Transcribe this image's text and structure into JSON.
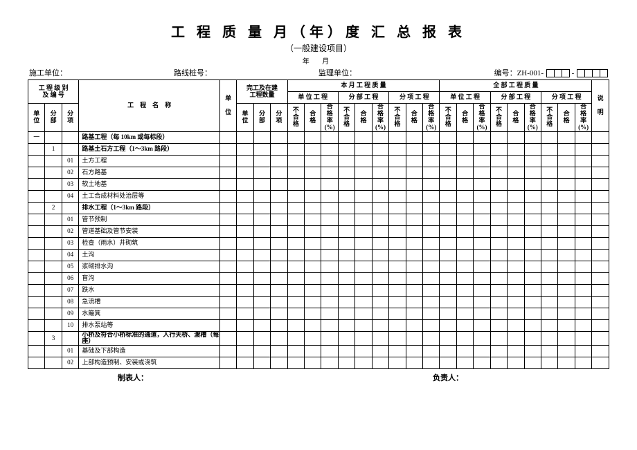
{
  "title": "工 程 质 量 月（年）度 汇 总 报 表",
  "subtitle": "（一般建设项目）",
  "date_label": "年    月",
  "meta": {
    "org": "施工单位：",
    "route": "路线桩号：",
    "supervisor": "监理单位：",
    "code_label": "编号：ZH-001-"
  },
  "head": {
    "grade_no": "工 程 级 别\n及 编 号",
    "name": "工　程　名　称",
    "unit": "单\n\n位",
    "build_qty": "完工及在建\n工程数量",
    "month_q": "本 月 工 程 质 量",
    "all_q": "全 部 工 程 质 量",
    "remark": "说\n\n明",
    "u": "单\n位",
    "s": "分\n部",
    "i": "分\n项",
    "uw": "单 位 工 程",
    "sw": "分 部 工 程",
    "iw": "分 项 工 程",
    "nq": "不\n合\n格",
    "q": "合\n格",
    "qr": "合\n格\n率\n(%)"
  },
  "rows": [
    {
      "a": "一",
      "b": "",
      "c": "",
      "name": "路基工程（每 10km 或每标段）",
      "bold": true
    },
    {
      "a": "",
      "b": "1",
      "c": "",
      "name": "路基土石方工程（1～3km 路段）",
      "bold": true
    },
    {
      "a": "",
      "b": "",
      "c": "01",
      "name": "土方工程"
    },
    {
      "a": "",
      "b": "",
      "c": "02",
      "name": "石方路基"
    },
    {
      "a": "",
      "b": "",
      "c": "03",
      "name": "软土地基"
    },
    {
      "a": "",
      "b": "",
      "c": "04",
      "name": "土工合成材料处治层等"
    },
    {
      "a": "",
      "b": "2",
      "c": "",
      "name": "排水工程（1～3km 路段）",
      "bold": true
    },
    {
      "a": "",
      "b": "",
      "c": "01",
      "name": "管节预制"
    },
    {
      "a": "",
      "b": "",
      "c": "02",
      "name": "管道基础及管节安装"
    },
    {
      "a": "",
      "b": "",
      "c": "03",
      "name": "检查（雨水）井砌筑"
    },
    {
      "a": "",
      "b": "",
      "c": "04",
      "name": "土沟"
    },
    {
      "a": "",
      "b": "",
      "c": "05",
      "name": "浆砌排水沟"
    },
    {
      "a": "",
      "b": "",
      "c": "06",
      "name": "盲沟"
    },
    {
      "a": "",
      "b": "",
      "c": "07",
      "name": "跌水"
    },
    {
      "a": "",
      "b": "",
      "c": "08",
      "name": "急流槽"
    },
    {
      "a": "",
      "b": "",
      "c": "09",
      "name": "水簸箕"
    },
    {
      "a": "",
      "b": "",
      "c": "10",
      "name": "排水泵站等"
    },
    {
      "a": "",
      "b": "3",
      "c": "",
      "name": "小桥及符合小桥标准的通道，人行天桥、渡槽（每座）",
      "bold": true
    },
    {
      "a": "",
      "b": "",
      "c": "01",
      "name": "基础及下部构造"
    },
    {
      "a": "",
      "b": "",
      "c": "02",
      "name": "上部构造预制、安装或浇筑"
    }
  ],
  "foot": {
    "maker": "制表人：",
    "owner": "负责人："
  }
}
